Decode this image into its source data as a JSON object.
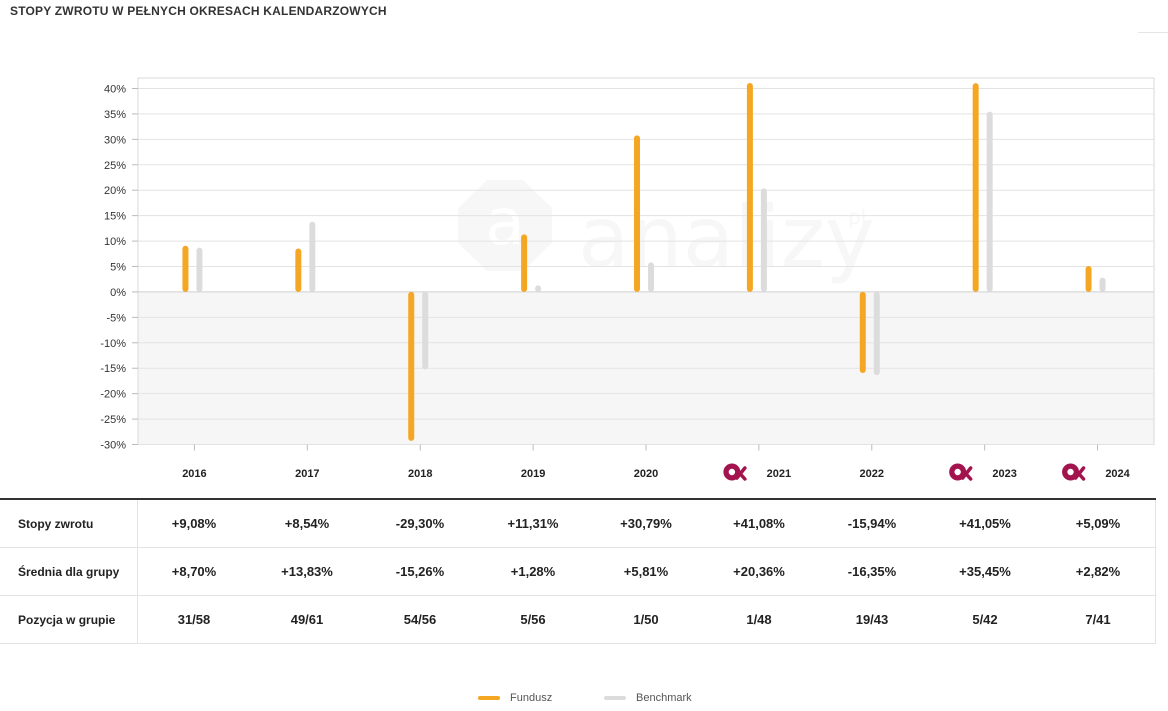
{
  "page": {
    "title": "STOPY ZWROTU W PEŁNYCH OKRESACH KALENDARZOWYCH"
  },
  "colors": {
    "fund": "#f5a623",
    "benchmark": "#dcdcdc",
    "badge": "#a3144f"
  },
  "watermark": {
    "text": "analizy",
    "suffix": "pl"
  },
  "chart_data": {
    "type": "bar",
    "categories": [
      "2016",
      "2017",
      "2018",
      "2019",
      "2020",
      "2021",
      "2022",
      "2023",
      "2024"
    ],
    "badge_years": [
      "2021",
      "2023",
      "2024"
    ],
    "badge_icon": "analizy-badge-icon",
    "ylim": [
      -30,
      40
    ],
    "yticks": [
      40,
      35,
      30,
      25,
      20,
      15,
      10,
      5,
      0,
      -5,
      -10,
      -15,
      -20,
      -25,
      -30
    ],
    "ytick_labels": [
      "40%",
      "35%",
      "30%",
      "25%",
      "20%",
      "15%",
      "10%",
      "5%",
      "0%",
      "-5%",
      "-10%",
      "-15%",
      "-20%",
      "-25%",
      "-30%"
    ],
    "series": [
      {
        "name": "Fundusz",
        "values": [
          9.08,
          8.54,
          -29.3,
          11.31,
          30.79,
          41.08,
          -15.94,
          41.05,
          5.09
        ]
      },
      {
        "name": "Benchmark",
        "values": [
          8.7,
          13.83,
          -15.26,
          1.28,
          5.81,
          20.36,
          -16.35,
          35.45,
          2.82
        ]
      }
    ]
  },
  "table": {
    "rows": [
      {
        "label": "Stopy zwrotu",
        "values": [
          "+9,08%",
          "+8,54%",
          "-29,30%",
          "+11,31%",
          "+30,79%",
          "+41,08%",
          "-15,94%",
          "+41,05%",
          "+5,09%"
        ]
      },
      {
        "label": "Średnia dla grupy",
        "values": [
          "+8,70%",
          "+13,83%",
          "-15,26%",
          "+1,28%",
          "+5,81%",
          "+20,36%",
          "-16,35%",
          "+35,45%",
          "+2,82%"
        ]
      },
      {
        "label": "Pozycja w grupie",
        "values": [
          "31/58",
          "49/61",
          "54/56",
          "5/56",
          "1/50",
          "1/48",
          "19/43",
          "5/42",
          "7/41"
        ]
      }
    ]
  },
  "legend": {
    "fund": "Fundusz",
    "benchmark": "Benchmark"
  }
}
